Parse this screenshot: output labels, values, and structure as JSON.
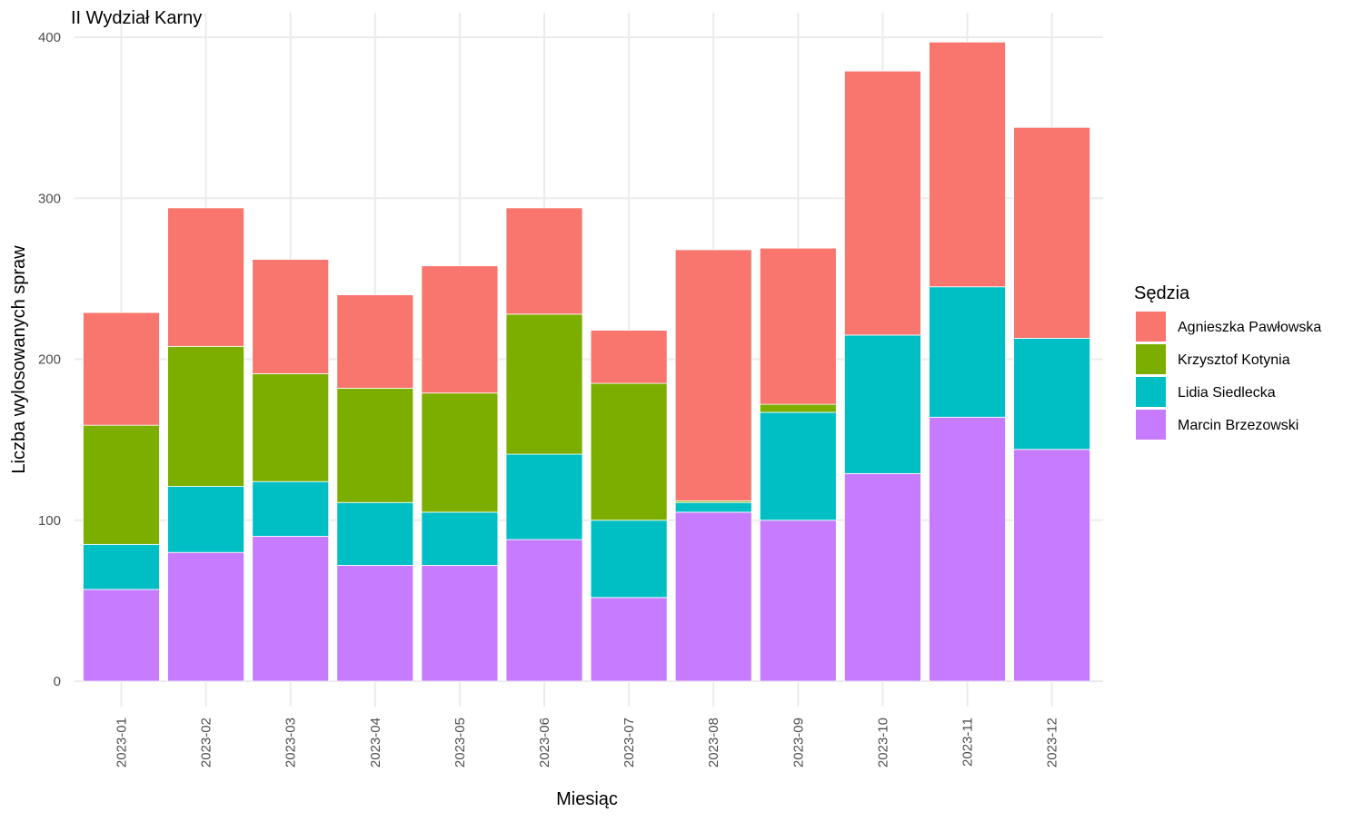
{
  "chart_data": {
    "type": "bar",
    "stacked": true,
    "title": "II Wydział Karny",
    "xlabel": "Miesiąc",
    "ylabel": "Liczba wylosowanych spraw",
    "ylim": [
      0,
      400
    ],
    "y_ticks": [
      0,
      100,
      200,
      300,
      400
    ],
    "grid": true,
    "legend_title": "Sędzia",
    "legend_position": "right",
    "categories": [
      "2023-01",
      "2023-02",
      "2023-03",
      "2023-04",
      "2023-05",
      "2023-06",
      "2023-07",
      "2023-08",
      "2023-09",
      "2023-10",
      "2023-11",
      "2023-12"
    ],
    "stack_order": [
      "Marcin Brzezowski",
      "Lidia Siedlecka",
      "Krzysztof Kotynia",
      "Agnieszka Pawłowska"
    ],
    "series": [
      {
        "name": "Agnieszka Pawłowska",
        "color": "#F8766D",
        "values": [
          70,
          86,
          71,
          58,
          79,
          66,
          33,
          156,
          97,
          164,
          152,
          131
        ]
      },
      {
        "name": "Krzysztof Kotynia",
        "color": "#7CAE00",
        "values": [
          74,
          87,
          67,
          71,
          74,
          87,
          85,
          1,
          5,
          0,
          0,
          0
        ]
      },
      {
        "name": "Lidia Siedlecka",
        "color": "#00BFC4",
        "values": [
          28,
          41,
          34,
          39,
          33,
          53,
          48,
          6,
          67,
          86,
          81,
          69
        ]
      },
      {
        "name": "Marcin Brzezowski",
        "color": "#C77CFF",
        "values": [
          57,
          80,
          90,
          72,
          72,
          88,
          52,
          105,
          100,
          129,
          164,
          144
        ]
      }
    ]
  }
}
